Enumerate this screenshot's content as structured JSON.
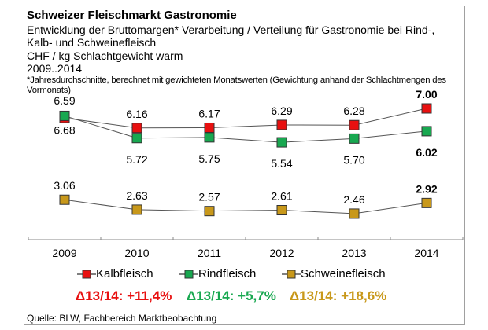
{
  "header": {
    "title": "Schweizer Fleischmarkt Gastronomie",
    "subtitle_line1": "Entwicklung der Bruttomargen* Verarbeitung / Verteilung  für Gastronomie bei Rind-,",
    "subtitle_line2": "Kalb- und Schweinefleisch",
    "unit": "CHF / kg Schlachtgewicht warm",
    "period": "2009..2014",
    "footnote": "*Jahresdurchschnitte, berechnet mit gewichteten Monatswerten (Gewichtung anhand der Schlachtmengen des Vormonats)"
  },
  "chart_data": {
    "type": "line",
    "title": "Schweizer Fleischmarkt Gastronomie",
    "ylabel": "CHF / kg Schlachtgewicht warm",
    "categories": [
      "2009",
      "2010",
      "2011",
      "2012",
      "2013",
      "2014"
    ],
    "series": [
      {
        "name": "Kalbfleisch",
        "color": "#e81010",
        "values": [
          6.59,
          6.16,
          6.17,
          6.29,
          6.28,
          7.0
        ],
        "labels": [
          "6.59",
          "6.16",
          "6.17",
          "6.29",
          "6.28",
          "7.00"
        ],
        "label_pos": "above"
      },
      {
        "name": "Rindfleisch",
        "color": "#18a850",
        "values": [
          6.68,
          5.72,
          5.75,
          5.54,
          5.7,
          6.02
        ],
        "labels": [
          "6.68",
          "5.72",
          "5.75",
          "5.54",
          "5.70",
          "6.02"
        ],
        "label_pos": "below"
      },
      {
        "name": "Schweinefleisch",
        "color": "#c8981a",
        "values": [
          3.06,
          2.63,
          2.57,
          2.61,
          2.46,
          2.92
        ],
        "labels": [
          "3.06",
          "2.63",
          "2.57",
          "2.61",
          "2.46",
          "2.92"
        ],
        "label_pos": "above"
      }
    ],
    "legend": "bottom",
    "grid": false
  },
  "deltas": [
    {
      "text": "Δ13/14: +11,4%",
      "color": "#e81010"
    },
    {
      "text": "Δ13/14: +5,7%",
      "color": "#18a850"
    },
    {
      "text": "Δ13/14: +18,6%",
      "color": "#c8981a"
    }
  ],
  "source": "Quelle: BLW, Fachbereich Marktbeobachtung"
}
